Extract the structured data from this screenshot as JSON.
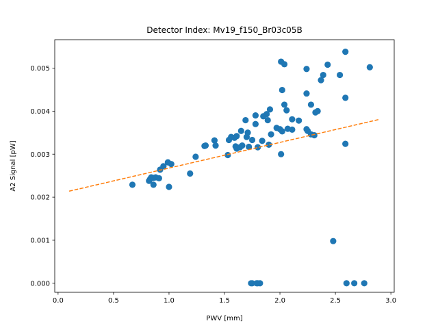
{
  "colors": {
    "scatter": "#1f77b4",
    "fit": "#ff7f0e",
    "axis": "#000000",
    "background": "#ffffff"
  },
  "chart_data": {
    "type": "scatter",
    "title": "Detector Index: Mv19_f150_Br03c05B",
    "xlabel": "PWV [mm]",
    "ylabel": "A2 Signal [pW]",
    "xlim": [
      -0.03,
      3.03
    ],
    "ylim": [
      -0.00021,
      0.00566
    ],
    "xticks": [
      0.0,
      0.5,
      1.0,
      1.5,
      2.0,
      2.5,
      3.0
    ],
    "xtick_labels": [
      "0.0",
      "0.5",
      "1.0",
      "1.5",
      "2.0",
      "2.5",
      "3.0"
    ],
    "yticks": [
      0.0,
      0.001,
      0.002,
      0.003,
      0.004,
      0.005
    ],
    "ytick_labels": [
      "0.000",
      "0.001",
      "0.002",
      "0.003",
      "0.004",
      "0.005"
    ],
    "grid": false,
    "series": [
      {
        "name": "data",
        "kind": "points",
        "points": [
          [
            0.67,
            0.00229
          ],
          [
            0.82,
            0.00238
          ],
          [
            0.83,
            0.00242
          ],
          [
            0.84,
            0.00246
          ],
          [
            0.86,
            0.00229
          ],
          [
            0.86,
            0.00245
          ],
          [
            0.88,
            0.00246
          ],
          [
            0.91,
            0.00244
          ],
          [
            0.92,
            0.00264
          ],
          [
            0.95,
            0.00272
          ],
          [
            0.99,
            0.00281
          ],
          [
            1.0,
            0.00224
          ],
          [
            1.02,
            0.00277
          ],
          [
            1.19,
            0.00255
          ],
          [
            1.24,
            0.00294
          ],
          [
            1.32,
            0.00319
          ],
          [
            1.33,
            0.0032
          ],
          [
            1.41,
            0.00332
          ],
          [
            1.42,
            0.0032
          ],
          [
            1.53,
            0.00298
          ],
          [
            1.54,
            0.00333
          ],
          [
            1.56,
            0.0034
          ],
          [
            1.59,
            0.00338
          ],
          [
            1.6,
            0.00318
          ],
          [
            1.61,
            0.00313
          ],
          [
            1.61,
            0.00342
          ],
          [
            1.64,
            0.00316
          ],
          [
            1.65,
            0.00354
          ],
          [
            1.66,
            0.0032
          ],
          [
            1.69,
            0.00379
          ],
          [
            1.7,
            0.0034
          ],
          [
            1.71,
            0.0035
          ],
          [
            1.72,
            0.00317
          ],
          [
            1.75,
            0.00333
          ],
          [
            1.78,
            0.0037
          ],
          [
            1.78,
            0.0039
          ],
          [
            1.8,
            0.00316
          ],
          [
            1.84,
            0.00331
          ],
          [
            1.85,
            0.00388
          ],
          [
            1.88,
            0.00393
          ],
          [
            1.89,
            0.00379
          ],
          [
            1.9,
            0.00322
          ],
          [
            1.91,
            0.00404
          ],
          [
            1.92,
            0.00346
          ],
          [
            1.97,
            0.00361
          ],
          [
            2.0,
            0.00358
          ],
          [
            2.01,
            0.003
          ],
          [
            2.01,
            0.00515
          ],
          [
            2.02,
            0.00353
          ],
          [
            2.02,
            0.00449
          ],
          [
            2.04,
            0.00509
          ],
          [
            2.04,
            0.00415
          ],
          [
            2.06,
            0.00402
          ],
          [
            2.07,
            0.00359
          ],
          [
            2.11,
            0.00357
          ],
          [
            2.11,
            0.00381
          ],
          [
            2.17,
            0.00378
          ],
          [
            2.24,
            0.00498
          ],
          [
            2.24,
            0.00441
          ],
          [
            2.24,
            0.00358
          ],
          [
            2.25,
            0.00354
          ],
          [
            2.28,
            0.00415
          ],
          [
            2.28,
            0.00346
          ],
          [
            2.31,
            0.00344
          ],
          [
            2.32,
            0.00397
          ],
          [
            2.34,
            0.004
          ],
          [
            2.37,
            0.00472
          ],
          [
            2.39,
            0.00484
          ],
          [
            2.43,
            0.00508
          ],
          [
            2.48,
            0.00098
          ],
          [
            2.54,
            0.00484
          ],
          [
            2.59,
            0.00538
          ],
          [
            2.59,
            0.00431
          ],
          [
            2.59,
            0.00324
          ],
          [
            2.6,
            0.0
          ],
          [
            2.67,
            0.0
          ],
          [
            2.76,
            0.0
          ],
          [
            2.81,
            0.00502
          ],
          [
            1.74,
            0.0
          ],
          [
            1.75,
            0.0
          ],
          [
            1.79,
            0.0
          ],
          [
            1.8,
            0.0
          ],
          [
            1.82,
            0.0
          ]
        ]
      },
      {
        "name": "fit",
        "kind": "dashed-line",
        "points": [
          [
            0.1,
            0.00214
          ],
          [
            2.9,
            0.00381
          ]
        ]
      }
    ]
  }
}
